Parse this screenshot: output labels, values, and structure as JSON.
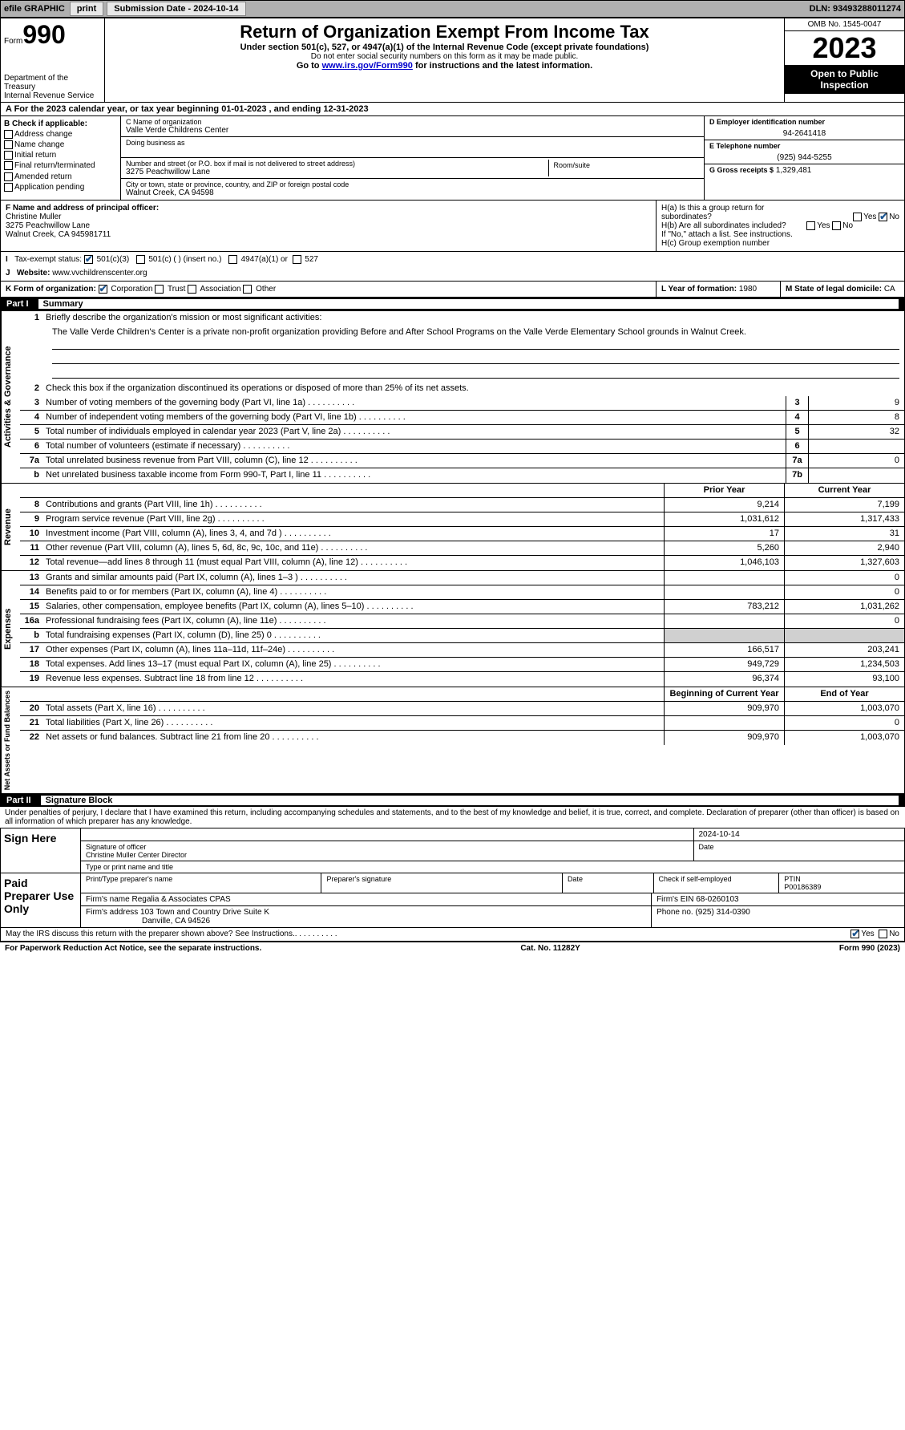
{
  "topbar": {
    "efile_label": "efile GRAPHIC",
    "print_btn": "print",
    "submission_label": "Submission Date - 2024-10-14",
    "dln": "DLN: 93493288011274"
  },
  "header": {
    "form_label": "Form",
    "form_num": "990",
    "dept": "Department of the Treasury",
    "irs": "Internal Revenue Service",
    "title": "Return of Organization Exempt From Income Tax",
    "sub1": "Under section 501(c), 527, or 4947(a)(1) of the Internal Revenue Code (except private foundations)",
    "sub2": "Do not enter social security numbers on this form as it may be made public.",
    "sub3_pre": "Go to ",
    "sub3_link": "www.irs.gov/Form990",
    "sub3_post": " for instructions and the latest information.",
    "omb": "OMB No. 1545-0047",
    "year": "2023",
    "open": "Open to Public Inspection"
  },
  "row_a": "A  For the 2023 calendar year, or tax year beginning 01-01-2023   , and ending 12-31-2023",
  "section_b": {
    "label": "B Check if applicable:",
    "opts": [
      "Address change",
      "Name change",
      "Initial return",
      "Final return/terminated",
      "Amended return",
      "Application pending"
    ]
  },
  "section_c": {
    "name_lbl": "C Name of organization",
    "name": "Valle Verde Childrens Center",
    "dba_lbl": "Doing business as",
    "dba": "",
    "street_lbl": "Number and street (or P.O. box if mail is not delivered to street address)",
    "street": "3275 Peachwillow Lane",
    "room_lbl": "Room/suite",
    "city_lbl": "City or town, state or province, country, and ZIP or foreign postal code",
    "city": "Walnut Creek, CA  94598"
  },
  "section_d": {
    "ein_lbl": "D Employer identification number",
    "ein": "94-2641418",
    "phone_lbl": "E Telephone number",
    "phone": "(925) 944-5255",
    "gross_lbl": "G Gross receipts $",
    "gross": "1,329,481"
  },
  "section_f": {
    "lbl": "F  Name and address of principal officer:",
    "name": "Christine Muller",
    "addr1": "3275 Peachwillow Lane",
    "addr2": "Walnut Creek, CA  945981711"
  },
  "section_h": {
    "ha": "H(a)  Is this a group return for",
    "ha2": "subordinates?",
    "hb": "H(b)  Are all subordinates included?",
    "hb2": "If \"No,\" attach a list. See instructions.",
    "hc": "H(c)  Group exemption number  ",
    "yes": "Yes",
    "no": "No"
  },
  "section_i": {
    "lbl": "Tax-exempt status:",
    "o1": "501(c)(3)",
    "o2": "501(c) (  ) (insert no.)",
    "o3": "4947(a)(1) or",
    "o4": "527"
  },
  "section_j": {
    "lbl": "Website: ",
    "val": "www.vvchildrenscenter.org"
  },
  "section_k": {
    "lbl": "K Form of organization:",
    "o1": "Corporation",
    "o2": "Trust",
    "o3": "Association",
    "o4": "Other"
  },
  "section_l": {
    "lbl": "L Year of formation:",
    "val": "1980"
  },
  "section_m": {
    "lbl": "M State of legal domicile:",
    "val": "CA"
  },
  "part1": {
    "num": "Part I",
    "title": "Summary"
  },
  "summary": {
    "q1_lbl": "Briefly describe the organization's mission or most significant activities:",
    "q1_text": "The Valle Verde Children's Center is a private non-profit organization providing Before and After School Programs on the Valle Verde Elementary School grounds in Walnut Creek.",
    "q2": "Check this box      if the organization discontinued its operations or disposed of more than 25% of its net assets.",
    "lines_top": [
      {
        "n": "3",
        "d": "Number of voting members of the governing body (Part VI, line 1a)",
        "box": "3",
        "v": "9"
      },
      {
        "n": "4",
        "d": "Number of independent voting members of the governing body (Part VI, line 1b)",
        "box": "4",
        "v": "8"
      },
      {
        "n": "5",
        "d": "Total number of individuals employed in calendar year 2023 (Part V, line 2a)",
        "box": "5",
        "v": "32"
      },
      {
        "n": "6",
        "d": "Total number of volunteers (estimate if necessary)",
        "box": "6",
        "v": ""
      },
      {
        "n": "7a",
        "d": "Total unrelated business revenue from Part VIII, column (C), line 12",
        "box": "7a",
        "v": "0"
      },
      {
        "n": "b",
        "d": "Net unrelated business taxable income from Form 990-T, Part I, line 11",
        "box": "7b",
        "v": ""
      }
    ],
    "hdr_prior": "Prior Year",
    "hdr_current": "Current Year",
    "revenue": [
      {
        "n": "8",
        "d": "Contributions and grants (Part VIII, line 1h)",
        "p": "9,214",
        "c": "7,199"
      },
      {
        "n": "9",
        "d": "Program service revenue (Part VIII, line 2g)",
        "p": "1,031,612",
        "c": "1,317,433"
      },
      {
        "n": "10",
        "d": "Investment income (Part VIII, column (A), lines 3, 4, and 7d )",
        "p": "17",
        "c": "31"
      },
      {
        "n": "11",
        "d": "Other revenue (Part VIII, column (A), lines 5, 6d, 8c, 9c, 10c, and 11e)",
        "p": "5,260",
        "c": "2,940"
      },
      {
        "n": "12",
        "d": "Total revenue—add lines 8 through 11 (must equal Part VIII, column (A), line 12)",
        "p": "1,046,103",
        "c": "1,327,603"
      }
    ],
    "expenses": [
      {
        "n": "13",
        "d": "Grants and similar amounts paid (Part IX, column (A), lines 1–3 )",
        "p": "",
        "c": "0"
      },
      {
        "n": "14",
        "d": "Benefits paid to or for members (Part IX, column (A), line 4)",
        "p": "",
        "c": "0"
      },
      {
        "n": "15",
        "d": "Salaries, other compensation, employee benefits (Part IX, column (A), lines 5–10)",
        "p": "783,212",
        "c": "1,031,262"
      },
      {
        "n": "16a",
        "d": "Professional fundraising fees (Part IX, column (A), line 11e)",
        "p": "",
        "c": "0"
      },
      {
        "n": "b",
        "d": "Total fundraising expenses (Part IX, column (D), line 25) 0",
        "p": "gray",
        "c": "gray"
      },
      {
        "n": "17",
        "d": "Other expenses (Part IX, column (A), lines 11a–11d, 11f–24e)",
        "p": "166,517",
        "c": "203,241"
      },
      {
        "n": "18",
        "d": "Total expenses. Add lines 13–17 (must equal Part IX, column (A), line 25)",
        "p": "949,729",
        "c": "1,234,503"
      },
      {
        "n": "19",
        "d": "Revenue less expenses. Subtract line 18 from line 12",
        "p": "96,374",
        "c": "93,100"
      }
    ],
    "hdr_begin": "Beginning of Current Year",
    "hdr_end": "End of Year",
    "netassets": [
      {
        "n": "20",
        "d": "Total assets (Part X, line 16)",
        "p": "909,970",
        "c": "1,003,070"
      },
      {
        "n": "21",
        "d": "Total liabilities (Part X, line 26)",
        "p": "",
        "c": "0"
      },
      {
        "n": "22",
        "d": "Net assets or fund balances. Subtract line 21 from line 20",
        "p": "909,970",
        "c": "1,003,070"
      }
    ],
    "vlabels": {
      "gov": "Activities & Governance",
      "rev": "Revenue",
      "exp": "Expenses",
      "net": "Net Assets or Fund Balances"
    }
  },
  "part2": {
    "num": "Part II",
    "title": "Signature Block"
  },
  "sig": {
    "perjury": "Under penalties of perjury, I declare that I have examined this return, including accompanying schedules and statements, and to the best of my knowledge and belief, it is true, correct, and complete. Declaration of preparer (other than officer) is based on all information of which preparer has any knowledge.",
    "sign_here": "Sign Here",
    "date": "2024-10-14",
    "sig_officer_lbl": "Signature of officer",
    "officer_name": "Christine Muller  Center Director",
    "type_lbl": "Type or print name and title",
    "date_lbl": "Date",
    "paid": "Paid Preparer Use Only",
    "prep_name_lbl": "Print/Type preparer's name",
    "prep_sig_lbl": "Preparer's signature",
    "check_lbl": "Check       if self-employed",
    "ptin_lbl": "PTIN",
    "ptin": "P00186389",
    "firm_name_lbl": "Firm's name   ",
    "firm_name": "Regalia & Associates CPAS",
    "firm_ein_lbl": "Firm's EIN  ",
    "firm_ein": "68-0260103",
    "firm_addr_lbl": "Firm's address ",
    "firm_addr1": "103 Town and Country Drive Suite K",
    "firm_addr2": "Danville, CA  94526",
    "phone_lbl": "Phone no.",
    "phone": "(925) 314-0390",
    "discuss": "May the IRS discuss this return with the preparer shown above? See Instructions.",
    "yes": "Yes",
    "no": "No"
  },
  "footer": {
    "left": "For Paperwork Reduction Act Notice, see the separate instructions.",
    "mid": "Cat. No. 11282Y",
    "right": "Form 990 (2023)"
  }
}
